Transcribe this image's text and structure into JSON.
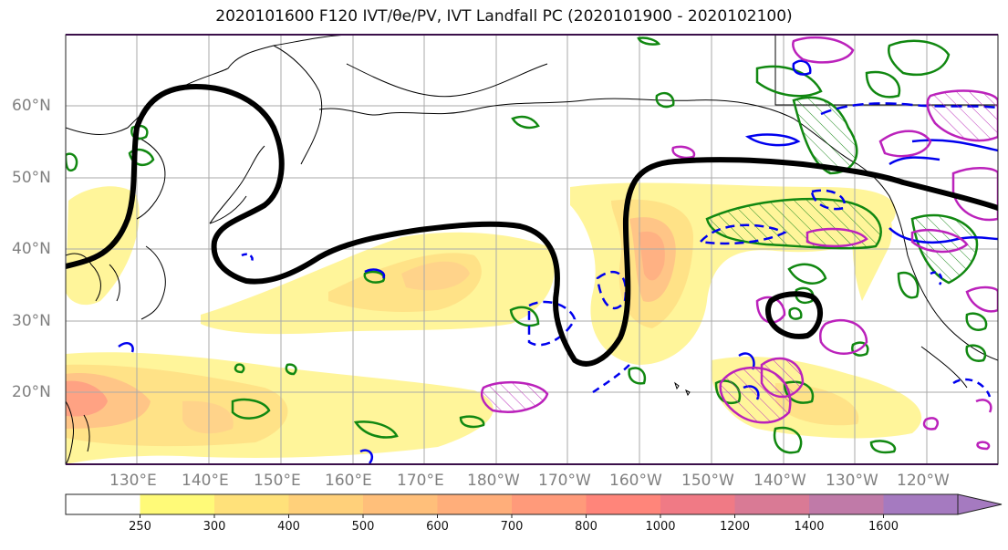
{
  "title": "2020101600 F120 IVT/θe/PV, IVT Landfall PC (2020101900 - 2020102100)",
  "lat_labels": [
    "60°N",
    "50°N",
    "40°N",
    "30°N",
    "20°N"
  ],
  "lon_labels": [
    "130°E",
    "140°E",
    "150°E",
    "160°E",
    "170°E",
    "180°W",
    "170°W",
    "160°W",
    "150°W",
    "140°W",
    "130°W",
    "120°W"
  ],
  "colorbar": {
    "levels": [
      "250",
      "300",
      "400",
      "500",
      "600",
      "700",
      "800",
      "1000",
      "1200",
      "1400",
      "1600"
    ],
    "colors": [
      "#ffffff",
      "#fffa78",
      "#ffe17a",
      "#ffd07a",
      "#ffbf7a",
      "#ffae7a",
      "#ff9a7a",
      "#ff857a",
      "#f07a85",
      "#d97a95",
      "#c07aa8",
      "#a57ac0"
    ]
  },
  "contours": {
    "thick_black": "IVT landfall PC",
    "green": "theta-e",
    "blue": "theta-e dashed",
    "magenta": "PV"
  }
}
